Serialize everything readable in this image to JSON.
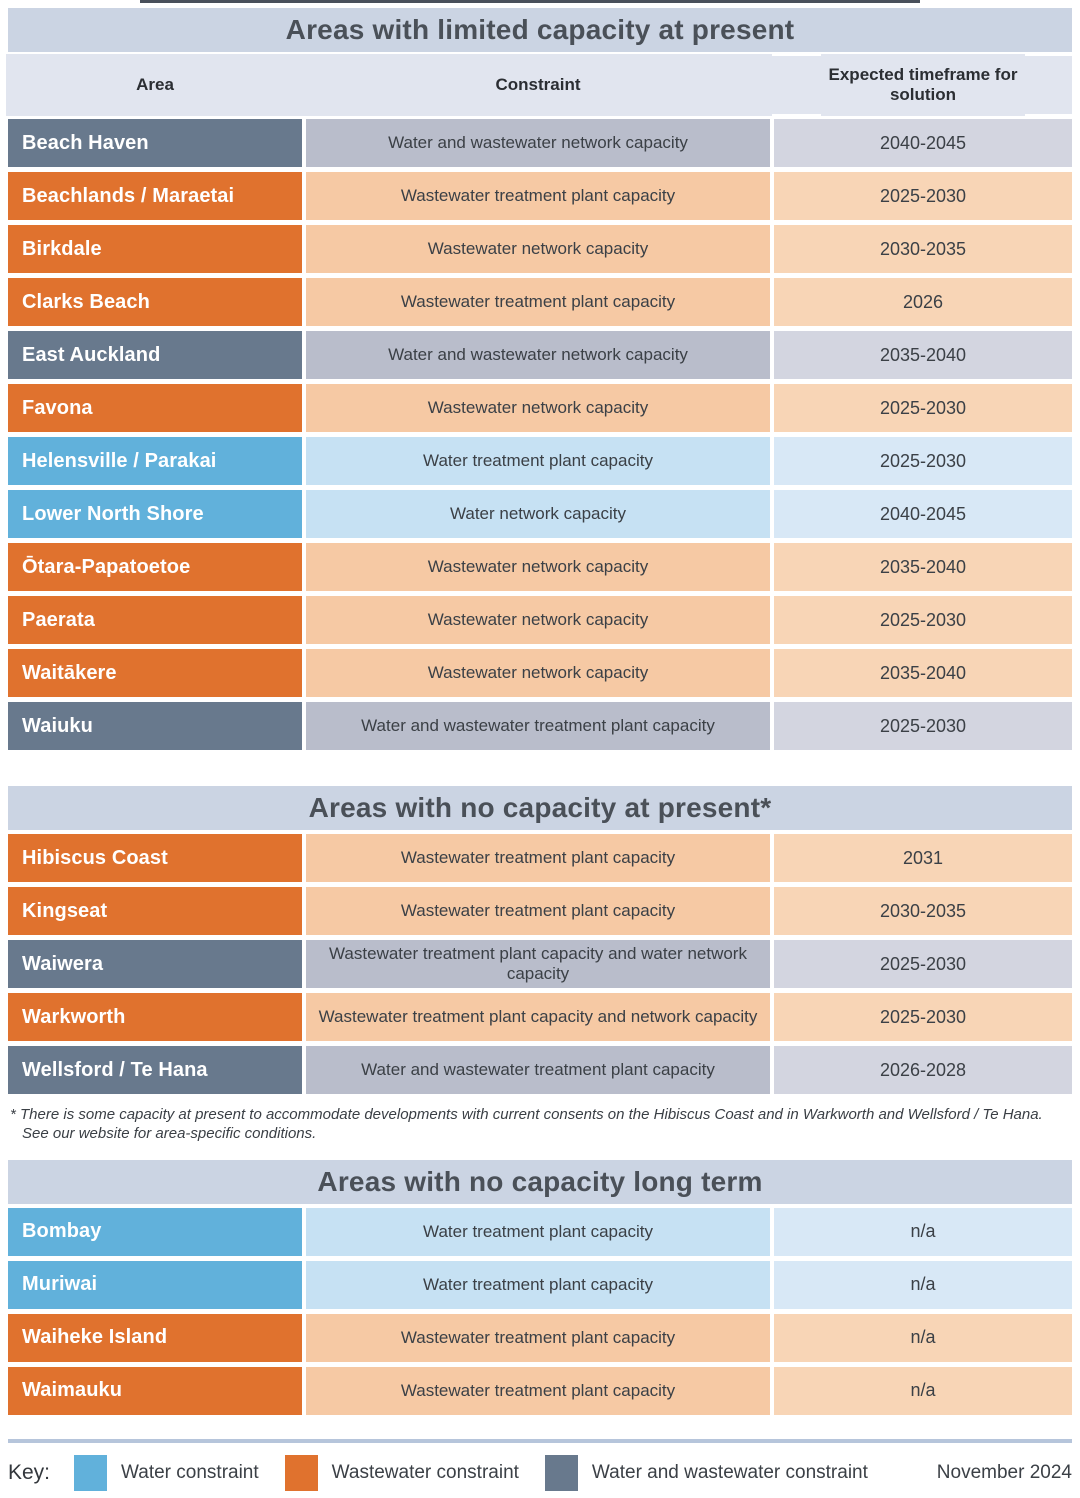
{
  "meta": {
    "date_label": "November 2024"
  },
  "colors": {
    "water_dark": "#61b1db",
    "water_mid": "#c6e1f3",
    "water_light": "#d8e8f6",
    "wastewater_dark": "#e0722e",
    "wastewater_mid": "#f6c9a4",
    "wastewater_light": "#f8d5b6",
    "both_dark": "#68798d",
    "both_mid": "#b9bdcb",
    "both_light": "#d3d5e0",
    "banner_bg": "#cbd4e3",
    "header_row_bg": "#e1e5ef",
    "divider": "#b6c5db"
  },
  "columns": [
    "Area",
    "Constraint",
    "Expected timeframe for solution"
  ],
  "sections": [
    {
      "title": "Areas with limited capacity at present",
      "show_column_header": true,
      "rows": [
        {
          "area": "Beach Haven",
          "constraint": "Water and wastewater network capacity",
          "timeframe": "2040-2045",
          "type": "both"
        },
        {
          "area": "Beachlands / Maraetai",
          "constraint": "Wastewater treatment plant capacity",
          "timeframe": "2025-2030",
          "type": "wastewater"
        },
        {
          "area": "Birkdale",
          "constraint": "Wastewater network capacity",
          "timeframe": "2030-2035",
          "type": "wastewater"
        },
        {
          "area": "Clarks Beach",
          "constraint": "Wastewater treatment plant capacity",
          "timeframe": "2026",
          "type": "wastewater"
        },
        {
          "area": "East Auckland",
          "constraint": "Water and wastewater network capacity",
          "timeframe": "2035-2040",
          "type": "both"
        },
        {
          "area": "Favona",
          "constraint": "Wastewater network capacity",
          "timeframe": "2025-2030",
          "type": "wastewater"
        },
        {
          "area": "Helensville / Parakai",
          "constraint": "Water treatment plant capacity",
          "timeframe": "2025-2030",
          "type": "water"
        },
        {
          "area": "Lower North Shore",
          "constraint": "Water network capacity",
          "timeframe": "2040-2045",
          "type": "water"
        },
        {
          "area": "Ōtara-Papatoetoe",
          "constraint": "Wastewater network capacity",
          "timeframe": "2035-2040",
          "type": "wastewater"
        },
        {
          "area": "Paerata",
          "constraint": "Wastewater network capacity",
          "timeframe": "2025-2030",
          "type": "wastewater"
        },
        {
          "area": "Waitākere",
          "constraint": "Wastewater network capacity",
          "timeframe": "2035-2040",
          "type": "wastewater"
        },
        {
          "area": "Waiuku",
          "constraint": "Water and wastewater treatment plant capacity",
          "timeframe": "2025-2030",
          "type": "both"
        }
      ]
    },
    {
      "title": "Areas with no capacity at present*",
      "show_column_header": false,
      "rows": [
        {
          "area": "Hibiscus Coast",
          "constraint": "Wastewater treatment plant capacity",
          "timeframe": "2031",
          "type": "wastewater"
        },
        {
          "area": "Kingseat",
          "constraint": "Wastewater treatment plant capacity",
          "timeframe": "2030-2035",
          "type": "wastewater"
        },
        {
          "area": "Waiwera",
          "constraint": "Wastewater treatment plant capacity and water network capacity",
          "timeframe": "2025-2030",
          "type": "both"
        },
        {
          "area": "Warkworth",
          "constraint": "Wastewater treatment plant capacity and network capacity",
          "timeframe": "2025-2030",
          "type": "wastewater"
        },
        {
          "area": "Wellsford / Te Hana",
          "constraint": "Water and wastewater treatment plant capacity",
          "timeframe": "2026-2028",
          "type": "both"
        }
      ],
      "footnote": [
        "* There is some capacity at present to accommodate developments with current consents on the Hibiscus Coast and in Warkworth and Wellsford / Te Hana.",
        "See our website for area-specific conditions."
      ]
    },
    {
      "title": "Areas with no capacity long term",
      "show_column_header": false,
      "rows": [
        {
          "area": "Bombay",
          "constraint": "Water treatment plant capacity",
          "timeframe": "n/a",
          "type": "water"
        },
        {
          "area": "Muriwai",
          "constraint": "Water treatment plant capacity",
          "timeframe": "n/a",
          "type": "water"
        },
        {
          "area": "Waiheke Island",
          "constraint": "Wastewater treatment plant capacity",
          "timeframe": "n/a",
          "type": "wastewater"
        },
        {
          "area": "Waimauku",
          "constraint": "Wastewater treatment plant capacity",
          "timeframe": "n/a",
          "type": "wastewater"
        }
      ]
    }
  ],
  "key": {
    "label": "Key:",
    "items": [
      {
        "label": "Water constraint",
        "type": "water"
      },
      {
        "label": "Wastewater constraint",
        "type": "wastewater"
      },
      {
        "label": "Water and wastewater constraint",
        "type": "both"
      }
    ]
  }
}
